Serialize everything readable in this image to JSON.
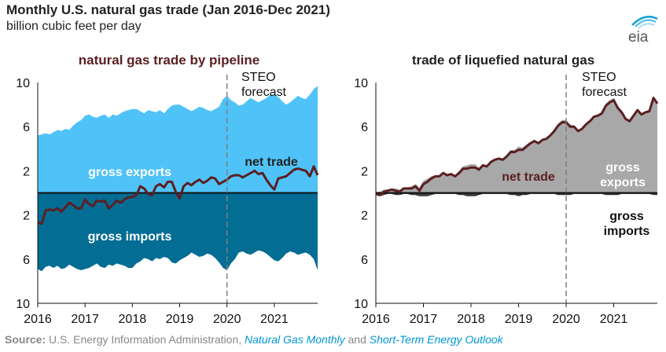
{
  "title": "Monthly U.S. natural gas trade (Jan 2016-Dec 2021)",
  "subtitle": "billion cubic feet per day",
  "logo_text": "eia",
  "source": {
    "label": "Source:",
    "agency": "U.S. Energy Information Administration,",
    "pub1": "Natural Gas Monthly",
    "and": "and",
    "pub2": "Short-Term Energy Outlook"
  },
  "colors": {
    "pipeline_exports": "#4fc3f7",
    "pipeline_imports": "#036d94",
    "lng_exports": "#a8a8a8",
    "net_trade": "#5b1f22",
    "forecast_line": "#7f7f7f",
    "annotation_text": "#ffffff"
  },
  "chart_data": [
    {
      "type": "area",
      "title": "natural gas trade by pipeline",
      "x_start": "2016-01",
      "x_end": "2021-12",
      "x_ticks": [
        "2016",
        "2017",
        "2018",
        "2019",
        "2020",
        "2021"
      ],
      "y_tick_labels": [
        "10",
        "6",
        "2",
        "2",
        "6",
        "10"
      ],
      "ylim": [
        -10,
        10
      ],
      "forecast_start": "2020-01",
      "forecast_label": "STEO\nforecast",
      "annotations": {
        "exports": "gross exports",
        "imports": "gross imports",
        "net": "net trade"
      },
      "series": [
        {
          "name": "gross exports",
          "values": [
            5.2,
            5.3,
            5.4,
            5.3,
            5.5,
            5.7,
            5.6,
            5.8,
            5.7,
            6.1,
            6.4,
            6.6,
            7.0,
            7.1,
            6.9,
            6.8,
            7.0,
            7.1,
            6.8,
            7.1,
            7.0,
            7.2,
            7.4,
            7.5,
            7.6,
            7.6,
            7.4,
            7.2,
            7.5,
            7.4,
            7.3,
            7.5,
            7.2,
            7.6,
            7.9,
            8.0,
            8.0,
            7.8,
            7.6,
            7.4,
            7.6,
            7.8,
            7.7,
            7.5,
            7.4,
            7.6,
            7.8,
            8.5,
            8.8,
            8.4,
            8.2,
            7.9,
            8.0,
            8.3,
            8.6,
            8.4,
            8.2,
            8.4,
            8.6,
            8.9,
            8.9,
            8.7,
            8.3,
            8.0,
            8.2,
            8.5,
            8.8,
            8.6,
            8.5,
            8.9,
            9.4,
            9.7
          ]
        },
        {
          "name": "gross imports",
          "values": [
            -6.9,
            -7.1,
            -6.7,
            -6.6,
            -6.8,
            -6.6,
            -6.9,
            -6.8,
            -6.5,
            -6.7,
            -6.9,
            -7.0,
            -6.9,
            -6.8,
            -6.6,
            -6.4,
            -6.7,
            -6.8,
            -6.5,
            -6.6,
            -6.4,
            -6.5,
            -6.6,
            -6.8,
            -6.8,
            -6.4,
            -6.2,
            -5.9,
            -6.0,
            -6.2,
            -5.9,
            -6.0,
            -5.8,
            -5.9,
            -6.3,
            -6.4,
            -6.1,
            -5.9,
            -5.7,
            -5.4,
            -5.6,
            -5.8,
            -5.7,
            -5.5,
            -5.6,
            -5.9,
            -6.3,
            -6.8,
            -7.0,
            -6.4,
            -6.0,
            -5.4,
            -5.3,
            -5.5,
            -5.6,
            -5.4,
            -5.2,
            -5.3,
            -5.5,
            -5.8,
            -6.1,
            -6.2,
            -5.9,
            -5.5,
            -5.3,
            -5.4,
            -5.6,
            -5.5,
            -5.4,
            -5.6,
            -6.0,
            -7.0
          ]
        },
        {
          "name": "net trade",
          "values": [
            -2.7,
            -2.8,
            -1.6,
            -1.5,
            -1.6,
            -1.4,
            -1.7,
            -1.3,
            -0.9,
            -1.1,
            -1.4,
            -1.4,
            -0.6,
            -1.0,
            -1.2,
            -0.7,
            -0.8,
            -0.7,
            -1.4,
            -1.1,
            -0.7,
            -0.9,
            -0.6,
            -0.4,
            -0.4,
            -0.2,
            0.6,
            0.4,
            -0.1,
            -0.2,
            0.6,
            0.8,
            0.5,
            1.0,
            1.0,
            0.1,
            -0.5,
            0.6,
            0.9,
            0.7,
            1.0,
            1.2,
            0.9,
            1.1,
            1.4,
            1.3,
            0.8,
            1.0,
            1.2,
            1.5,
            1.6,
            1.6,
            1.4,
            1.6,
            1.8,
            2.0,
            1.7,
            1.8,
            1.2,
            0.7,
            0.3,
            1.3,
            1.4,
            1.5,
            1.8,
            2.1,
            2.2,
            2.1,
            2.0,
            1.5,
            2.4,
            1.6
          ]
        }
      ]
    },
    {
      "type": "area",
      "title": "trade of liquefied natural gas",
      "x_start": "2016-01",
      "x_end": "2021-12",
      "x_ticks": [
        "2016",
        "2017",
        "2018",
        "2019",
        "2020",
        "2021"
      ],
      "y_tick_labels": [
        "10",
        "6",
        "2",
        "2",
        "6",
        "10"
      ],
      "ylim": [
        -10,
        10
      ],
      "forecast_start": "2020-01",
      "forecast_label": "STEO\nforecast",
      "annotations": {
        "exports": "gross\nexports",
        "imports": "gross\nimports",
        "net": "net trade"
      },
      "series": [
        {
          "name": "gross exports",
          "values": [
            0.1,
            0.1,
            0.3,
            0.3,
            0.4,
            0.4,
            0.3,
            0.5,
            0.5,
            0.6,
            0.8,
            0.5,
            1.1,
            1.3,
            1.5,
            1.6,
            1.6,
            1.9,
            1.7,
            1.8,
            1.6,
            2.0,
            2.4,
            2.5,
            2.6,
            2.6,
            2.3,
            2.6,
            2.5,
            2.9,
            3.1,
            3.2,
            3.1,
            3.4,
            3.9,
            3.9,
            4.2,
            4.1,
            4.4,
            4.6,
            4.8,
            4.6,
            4.9,
            5.0,
            5.3,
            5.7,
            6.3,
            6.6,
            6.6,
            6.2,
            6.1,
            5.7,
            5.9,
            6.3,
            6.6,
            7.0,
            7.1,
            7.3,
            8.1,
            8.4,
            8.6,
            7.9,
            7.4,
            6.8,
            6.6,
            7.1,
            7.6,
            7.2,
            7.4,
            7.5,
            8.8,
            8.3
          ]
        },
        {
          "name": "gross imports",
          "values": [
            -0.2,
            -0.3,
            -0.2,
            -0.1,
            -0.1,
            -0.2,
            -0.2,
            -0.1,
            -0.1,
            -0.2,
            -0.2,
            -0.3,
            -0.3,
            -0.3,
            -0.2,
            -0.1,
            -0.1,
            -0.1,
            -0.1,
            -0.1,
            -0.1,
            -0.2,
            -0.2,
            -0.3,
            -0.3,
            -0.3,
            -0.2,
            -0.1,
            -0.1,
            -0.1,
            -0.1,
            -0.1,
            -0.1,
            -0.1,
            -0.2,
            -0.2,
            -0.3,
            -0.2,
            -0.2,
            -0.1,
            -0.1,
            -0.1,
            -0.1,
            -0.1,
            -0.1,
            -0.1,
            -0.2,
            -0.2,
            -0.2,
            -0.2,
            -0.1,
            -0.1,
            -0.1,
            -0.1,
            -0.1,
            -0.1,
            -0.1,
            -0.1,
            -0.2,
            -0.2,
            -0.2,
            -0.2,
            -0.1,
            -0.1,
            -0.1,
            -0.1,
            -0.1,
            -0.1,
            -0.1,
            -0.1,
            -0.2,
            -0.2
          ]
        },
        {
          "name": "net trade",
          "values": [
            -0.1,
            -0.2,
            0.1,
            0.2,
            0.3,
            0.2,
            0.1,
            0.4,
            0.4,
            0.4,
            0.6,
            0.2,
            0.8,
            1.0,
            1.3,
            1.5,
            1.5,
            1.8,
            1.6,
            1.7,
            1.5,
            1.8,
            2.2,
            2.2,
            2.3,
            2.3,
            2.1,
            2.5,
            2.4,
            2.8,
            3.0,
            3.1,
            3.0,
            3.3,
            3.7,
            3.7,
            3.9,
            3.9,
            4.2,
            4.5,
            4.7,
            4.5,
            4.8,
            4.9,
            5.2,
            5.6,
            6.1,
            6.4,
            6.4,
            6.0,
            6.0,
            5.6,
            5.8,
            6.2,
            6.5,
            6.9,
            7.0,
            7.2,
            7.9,
            8.2,
            8.4,
            7.7,
            7.3,
            6.7,
            6.5,
            7.0,
            7.5,
            7.1,
            7.3,
            7.4,
            8.6,
            8.1
          ]
        }
      ]
    }
  ]
}
